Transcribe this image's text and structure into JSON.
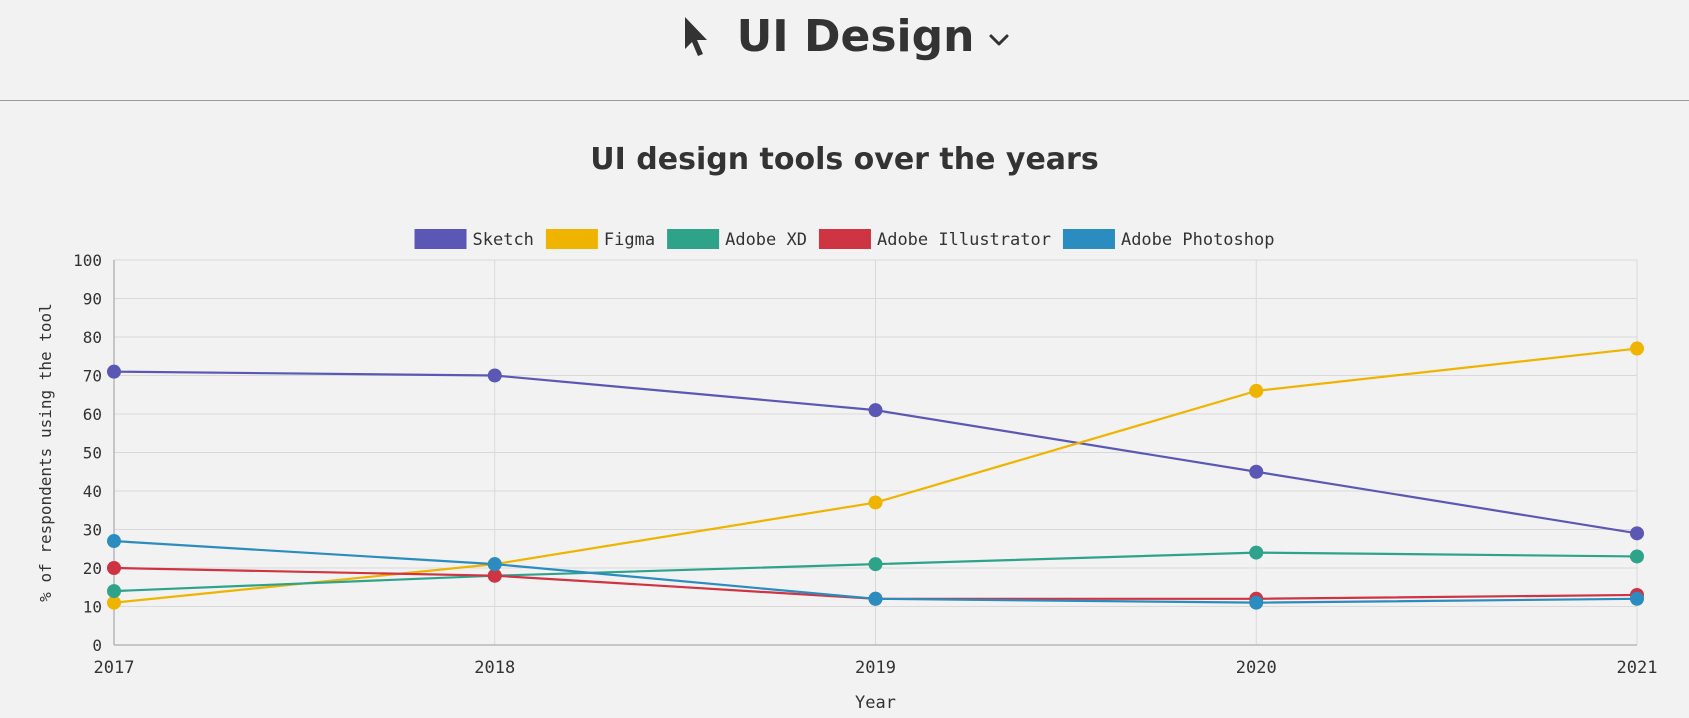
{
  "header": {
    "icon": "cursor-arrow-icon",
    "section_title": "UI Design",
    "dropdown_icon": "chevron-down-icon"
  },
  "chart_data": {
    "type": "line",
    "title": "UI design tools over the years",
    "xlabel": "Year",
    "ylabel": "% of respondents using the tool",
    "x": [
      "2017",
      "2018",
      "2019",
      "2020",
      "2021"
    ],
    "ylim": [
      0,
      100
    ],
    "yticks": [
      0,
      10,
      20,
      30,
      40,
      50,
      60,
      70,
      80,
      90,
      100
    ],
    "grid": true,
    "legend_position": "top",
    "series": [
      {
        "name": "Sketch",
        "color": "#5b58b5",
        "values": [
          71,
          70,
          61,
          45,
          29
        ]
      },
      {
        "name": "Figma",
        "color": "#efb400",
        "values": [
          11,
          21,
          37,
          66,
          77
        ]
      },
      {
        "name": "Adobe XD",
        "color": "#2ea38a",
        "values": [
          14,
          18,
          21,
          24,
          23
        ]
      },
      {
        "name": "Adobe Illustrator",
        "color": "#cf3443",
        "values": [
          20,
          18,
          12,
          12,
          13
        ]
      },
      {
        "name": "Adobe Photoshop",
        "color": "#2a8cbf",
        "values": [
          27,
          21,
          12,
          11,
          12
        ]
      }
    ]
  }
}
